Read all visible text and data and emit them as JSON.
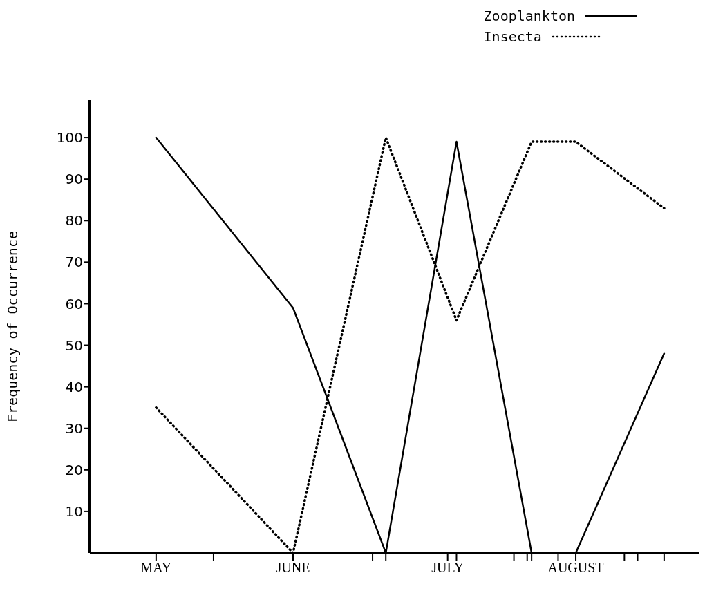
{
  "chart_data": {
    "type": "line",
    "ylabel": "Frequency of Occurrence",
    "x": [
      "--05-01",
      "--06-01",
      "--06-22",
      "--07-08",
      "--07-25",
      "--08-04",
      "--08-24"
    ],
    "xlim": [
      "--04-16",
      "--09-01"
    ],
    "xticks": [
      {
        "value": "--05-01",
        "label": "MAY"
      },
      {
        "value": "--05-14",
        "label": null
      },
      {
        "value": "--06-01",
        "label": "JUNE"
      },
      {
        "value": "--06-19",
        "label": null
      },
      {
        "value": "--06-22",
        "label": null
      },
      {
        "value": "--07-06",
        "label": "JULY"
      },
      {
        "value": "--07-08",
        "label": null
      },
      {
        "value": "--07-21",
        "label": null
      },
      {
        "value": "--07-24",
        "label": null
      },
      {
        "value": "--07-25",
        "label": null
      },
      {
        "value": "--07-31",
        "label": null
      },
      {
        "value": "--08-04",
        "label": "AUGUST"
      },
      {
        "value": "--08-15",
        "label": null
      },
      {
        "value": "--08-18",
        "label": null
      },
      {
        "value": "--08-24",
        "label": null
      }
    ],
    "ylim": [
      0,
      109
    ],
    "yticks": [
      10,
      20,
      30,
      40,
      50,
      60,
      70,
      80,
      90,
      100
    ],
    "series": [
      {
        "name": "Zooplankton",
        "color": "#000000",
        "line_style": "solid",
        "values": [
          100,
          59,
          0,
          99,
          0,
          0,
          48
        ]
      },
      {
        "name": "Insecta",
        "color": "#000000",
        "line_style": "dotted",
        "values": [
          35,
          0,
          100,
          56,
          99,
          99,
          83
        ]
      }
    ],
    "marker": "none",
    "grid": false,
    "legend": "top right"
  }
}
